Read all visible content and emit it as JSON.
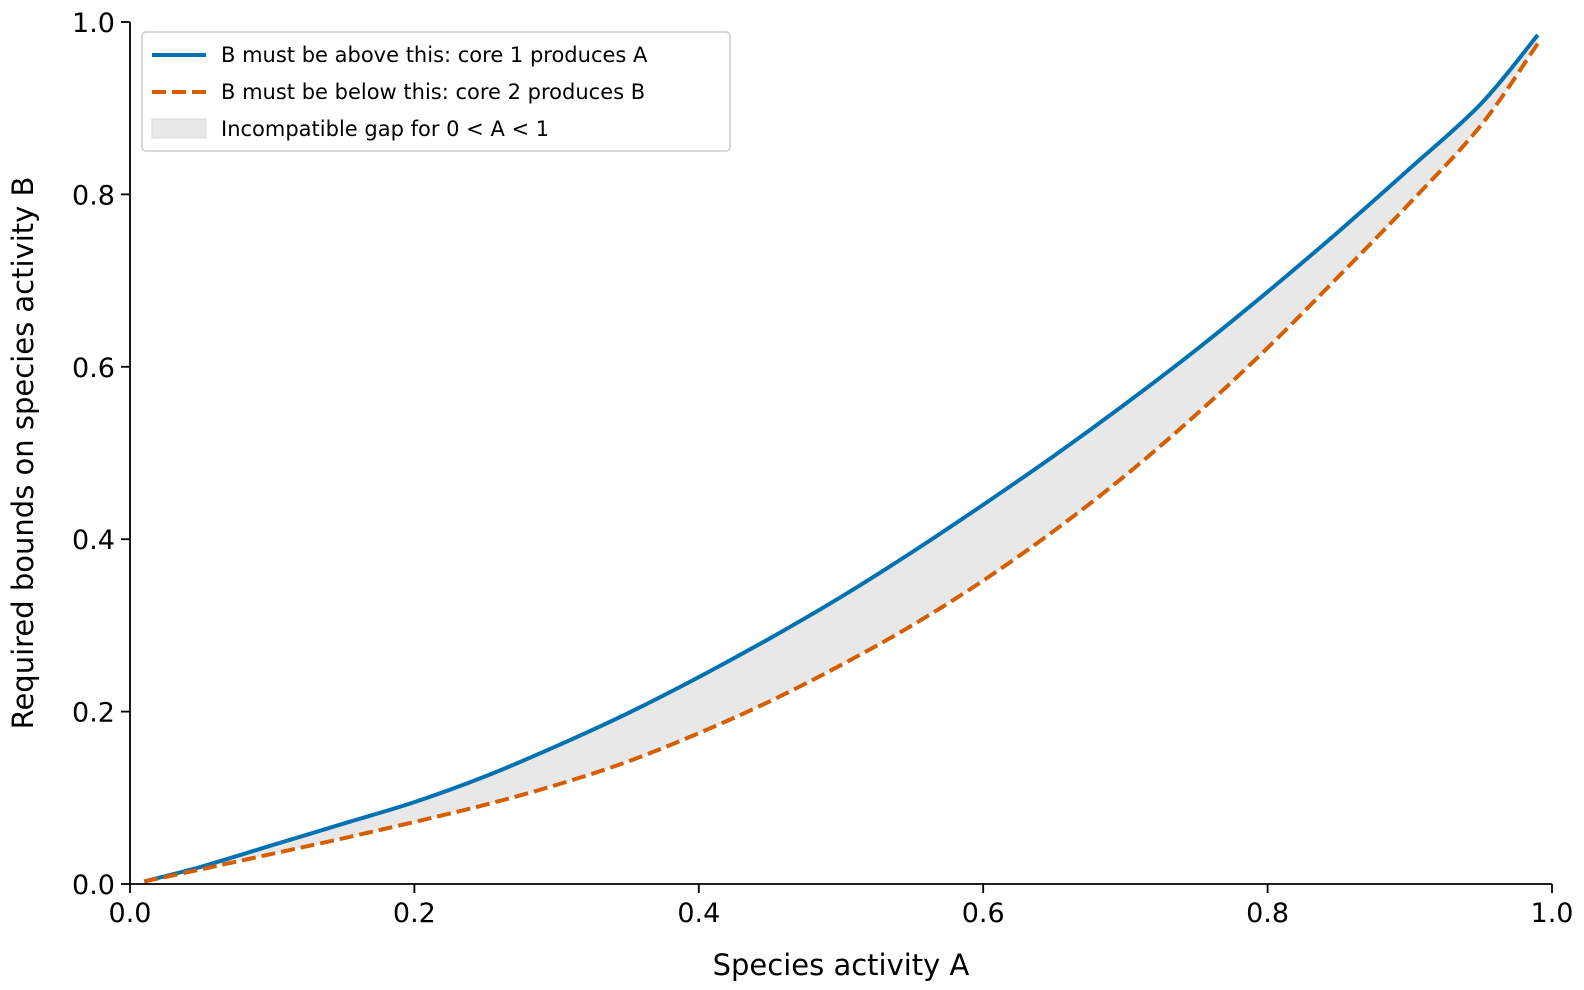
{
  "chart_data": {
    "type": "line",
    "xlabel": "Species activity A",
    "ylabel": "Required bounds on species activity B",
    "xlim": [
      0.0,
      1.0
    ],
    "ylim": [
      0.0,
      1.0
    ],
    "xticks": [
      "0.0",
      "0.2",
      "0.4",
      "0.6",
      "0.8",
      "1.0"
    ],
    "yticks": [
      "0.0",
      "0.2",
      "0.4",
      "0.6",
      "0.8",
      "1.0"
    ],
    "grid": false,
    "legend_position": "top-left",
    "x": [
      0.01,
      0.05,
      0.1,
      0.15,
      0.2,
      0.25,
      0.3,
      0.35,
      0.4,
      0.45,
      0.5,
      0.55,
      0.6,
      0.65,
      0.7,
      0.75,
      0.8,
      0.85,
      0.9,
      0.95,
      0.99
    ],
    "series": [
      {
        "name": "B must be above this: core 1 produces A",
        "style": "solid",
        "color": "#0072b2",
        "values": [
          0.003,
          0.02,
          0.045,
          0.07,
          0.095,
          0.125,
          0.16,
          0.198,
          0.24,
          0.285,
          0.333,
          0.385,
          0.44,
          0.497,
          0.557,
          0.62,
          0.687,
          0.757,
          0.83,
          0.905,
          0.985
        ]
      },
      {
        "name": "B must be below this: core 2 produces B",
        "style": "dashed",
        "color": "#d55e00",
        "values": [
          0.003,
          0.017,
          0.035,
          0.053,
          0.072,
          0.092,
          0.115,
          0.142,
          0.175,
          0.212,
          0.254,
          0.3,
          0.352,
          0.41,
          0.474,
          0.545,
          0.622,
          0.705,
          0.79,
          0.88,
          0.975
        ]
      }
    ],
    "fill": {
      "name": "Incompatible gap for 0 < A < 1",
      "color": "#e8e8e8"
    }
  }
}
